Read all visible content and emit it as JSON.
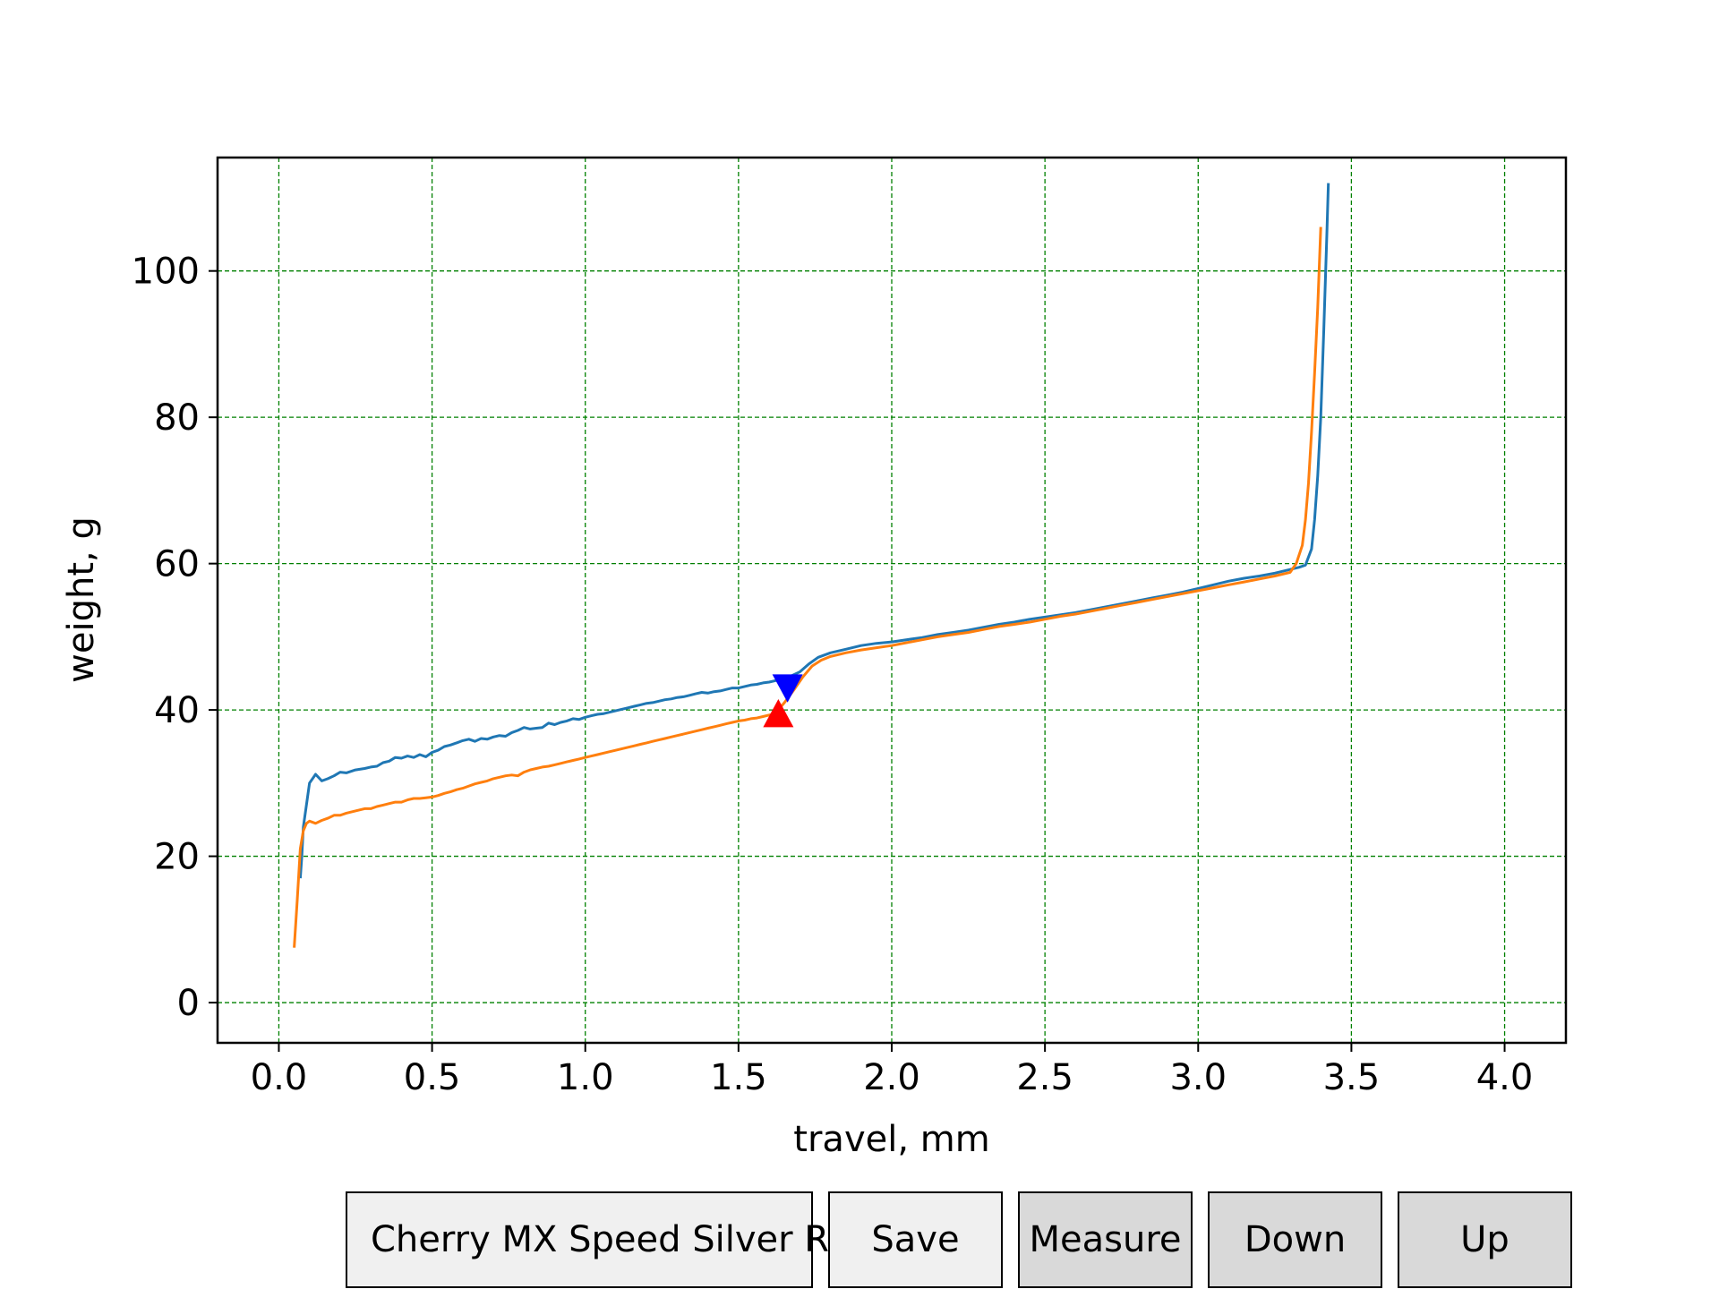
{
  "chart_data": {
    "type": "line",
    "xlabel": "travel, mm",
    "ylabel": "weight, g",
    "xlim": [
      -0.2,
      4.2
    ],
    "ylim": [
      -5.5,
      115.5
    ],
    "x_ticks": [
      0.0,
      0.5,
      1.0,
      1.5,
      2.0,
      2.5,
      3.0,
      3.5,
      4.0
    ],
    "x_tick_labels": [
      "0.0",
      "0.5",
      "1.0",
      "1.5",
      "2.0",
      "2.5",
      "3.0",
      "3.5",
      "4.0"
    ],
    "y_ticks": [
      0,
      20,
      40,
      60,
      80,
      100
    ],
    "y_tick_labels": [
      "0",
      "20",
      "40",
      "60",
      "80",
      "100"
    ],
    "grid": true,
    "grid_color": "#008000",
    "series": [
      {
        "color": "#1f77b4",
        "x": [
          0.07,
          0.075,
          0.08,
          0.1,
          0.12,
          0.14,
          0.16,
          0.18,
          0.2,
          0.22,
          0.25,
          0.28,
          0.3,
          0.32,
          0.34,
          0.36,
          0.38,
          0.4,
          0.42,
          0.44,
          0.46,
          0.48,
          0.5,
          0.52,
          0.54,
          0.56,
          0.58,
          0.6,
          0.62,
          0.64,
          0.66,
          0.68,
          0.7,
          0.72,
          0.74,
          0.76,
          0.78,
          0.8,
          0.82,
          0.84,
          0.86,
          0.88,
          0.9,
          0.92,
          0.94,
          0.96,
          0.98,
          1.0,
          1.02,
          1.04,
          1.06,
          1.08,
          1.1,
          1.12,
          1.14,
          1.16,
          1.18,
          1.2,
          1.22,
          1.24,
          1.26,
          1.28,
          1.3,
          1.32,
          1.34,
          1.36,
          1.38,
          1.4,
          1.42,
          1.44,
          1.46,
          1.48,
          1.5,
          1.52,
          1.54,
          1.56,
          1.58,
          1.6,
          1.62,
          1.64,
          1.66,
          1.7,
          1.73,
          1.76,
          1.8,
          1.85,
          1.9,
          1.95,
          2.0,
          2.05,
          2.1,
          2.15,
          2.2,
          2.25,
          2.3,
          2.35,
          2.4,
          2.45,
          2.5,
          2.55,
          2.6,
          2.65,
          2.7,
          2.75,
          2.8,
          2.85,
          2.9,
          2.95,
          3.0,
          3.05,
          3.1,
          3.15,
          3.2,
          3.25,
          3.3,
          3.33,
          3.35,
          3.37,
          3.38,
          3.39,
          3.4,
          3.41,
          3.42,
          3.425
        ],
        "y": [
          17.0,
          20.0,
          24.0,
          30.0,
          31.2,
          30.3,
          30.6,
          31.0,
          31.5,
          31.4,
          31.8,
          32.0,
          32.2,
          32.3,
          32.8,
          33.0,
          33.5,
          33.4,
          33.7,
          33.5,
          33.9,
          33.6,
          34.2,
          34.5,
          35.0,
          35.2,
          35.5,
          35.8,
          36.0,
          35.7,
          36.1,
          36.0,
          36.3,
          36.5,
          36.4,
          36.9,
          37.2,
          37.6,
          37.4,
          37.5,
          37.6,
          38.2,
          38.0,
          38.3,
          38.5,
          38.8,
          38.7,
          39.0,
          39.2,
          39.4,
          39.5,
          39.7,
          39.9,
          40.1,
          40.3,
          40.5,
          40.7,
          40.9,
          41.0,
          41.2,
          41.4,
          41.5,
          41.7,
          41.8,
          42.0,
          42.2,
          42.4,
          42.3,
          42.5,
          42.6,
          42.8,
          43.0,
          43.0,
          43.2,
          43.4,
          43.5,
          43.7,
          43.8,
          44.0,
          44.2,
          44.4,
          45.2,
          46.3,
          47.2,
          47.8,
          48.3,
          48.8,
          49.1,
          49.3,
          49.6,
          49.9,
          50.3,
          50.6,
          50.9,
          51.3,
          51.7,
          52.0,
          52.4,
          52.7,
          53.0,
          53.3,
          53.7,
          54.1,
          54.5,
          54.9,
          55.3,
          55.7,
          56.1,
          56.6,
          57.1,
          57.6,
          58.0,
          58.3,
          58.7,
          59.2,
          59.5,
          59.8,
          62.0,
          66.0,
          72.0,
          80.0,
          92.0,
          105.0,
          112.0
        ]
      },
      {
        "color": "#ff7f0e",
        "x": [
          0.05,
          0.06,
          0.07,
          0.08,
          0.09,
          0.1,
          0.12,
          0.14,
          0.16,
          0.18,
          0.2,
          0.22,
          0.25,
          0.28,
          0.3,
          0.32,
          0.34,
          0.36,
          0.38,
          0.4,
          0.42,
          0.44,
          0.46,
          0.48,
          0.5,
          0.52,
          0.54,
          0.56,
          0.58,
          0.6,
          0.62,
          0.64,
          0.66,
          0.68,
          0.7,
          0.72,
          0.74,
          0.76,
          0.78,
          0.8,
          0.82,
          0.84,
          0.86,
          0.88,
          0.9,
          0.92,
          0.94,
          0.96,
          0.98,
          1.0,
          1.02,
          1.04,
          1.06,
          1.08,
          1.1,
          1.12,
          1.14,
          1.16,
          1.18,
          1.2,
          1.22,
          1.24,
          1.26,
          1.28,
          1.3,
          1.32,
          1.34,
          1.36,
          1.38,
          1.4,
          1.42,
          1.44,
          1.46,
          1.48,
          1.5,
          1.52,
          1.54,
          1.56,
          1.58,
          1.6,
          1.62,
          1.65,
          1.68,
          1.71,
          1.74,
          1.77,
          1.8,
          1.85,
          1.9,
          1.95,
          2.0,
          2.05,
          2.1,
          2.15,
          2.2,
          2.25,
          2.3,
          2.35,
          2.4,
          2.45,
          2.5,
          2.55,
          2.6,
          2.65,
          2.7,
          2.75,
          2.8,
          2.85,
          2.9,
          2.95,
          3.0,
          3.05,
          3.1,
          3.15,
          3.2,
          3.25,
          3.3,
          3.32,
          3.34,
          3.35,
          3.36,
          3.37,
          3.38,
          3.39,
          3.4
        ],
        "y": [
          7.5,
          14.0,
          21.0,
          23.5,
          24.5,
          24.8,
          24.5,
          24.9,
          25.2,
          25.6,
          25.6,
          25.9,
          26.2,
          26.5,
          26.5,
          26.8,
          27.0,
          27.2,
          27.4,
          27.4,
          27.7,
          27.9,
          27.9,
          28.0,
          28.1,
          28.3,
          28.6,
          28.8,
          29.1,
          29.3,
          29.6,
          29.9,
          30.1,
          30.3,
          30.6,
          30.8,
          31.0,
          31.1,
          31.0,
          31.5,
          31.8,
          32.0,
          32.2,
          32.3,
          32.5,
          32.7,
          32.9,
          33.1,
          33.3,
          33.5,
          33.7,
          33.9,
          34.1,
          34.3,
          34.5,
          34.7,
          34.9,
          35.1,
          35.3,
          35.5,
          35.7,
          35.9,
          36.1,
          36.3,
          36.5,
          36.7,
          36.9,
          37.1,
          37.3,
          37.5,
          37.7,
          37.9,
          38.1,
          38.3,
          38.5,
          38.6,
          38.8,
          38.9,
          39.1,
          39.3,
          39.5,
          41.0,
          42.7,
          44.5,
          46.0,
          46.8,
          47.3,
          47.8,
          48.2,
          48.5,
          48.8,
          49.2,
          49.6,
          50.0,
          50.3,
          50.6,
          51.0,
          51.4,
          51.7,
          52.0,
          52.4,
          52.8,
          53.1,
          53.5,
          53.9,
          54.3,
          54.7,
          55.1,
          55.5,
          55.9,
          56.3,
          56.7,
          57.1,
          57.5,
          57.9,
          58.3,
          58.8,
          60.0,
          62.5,
          66.0,
          71.0,
          78.0,
          86.0,
          95.0,
          106.0
        ]
      }
    ],
    "markers": [
      {
        "shape": "triangle-down",
        "color": "#0000ff",
        "x": 1.66,
        "y": 43.2
      },
      {
        "shape": "triangle-up",
        "color": "#ff0000",
        "x": 1.63,
        "y": 39.3
      }
    ]
  },
  "controls": {
    "name_value": "Cherry MX Speed Silver RGB",
    "save_label": "Save",
    "measure_label": "Measure",
    "down_label": "Down",
    "up_label": "Up"
  }
}
